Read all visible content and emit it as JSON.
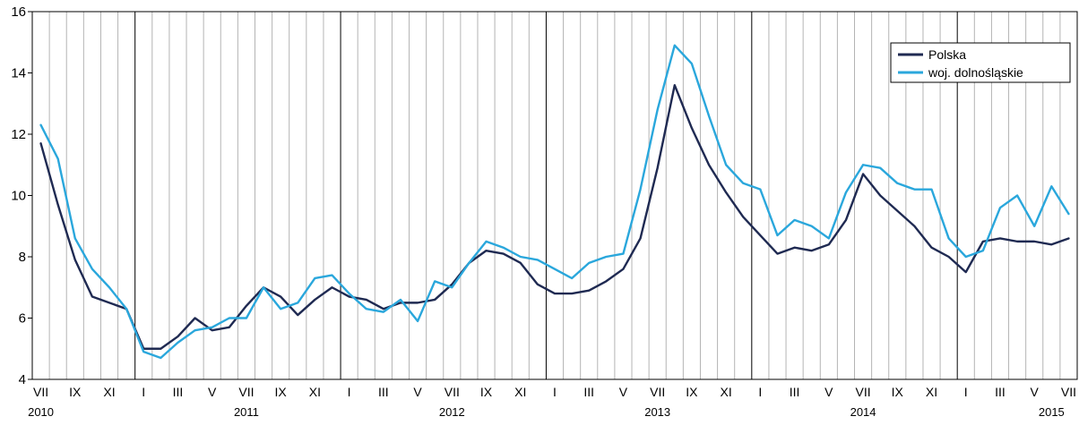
{
  "chart_data": {
    "type": "line",
    "ylim": [
      4,
      16
    ],
    "yticks": [
      4,
      6,
      8,
      10,
      12,
      14,
      16
    ],
    "grid": true,
    "legend_position": "top-right",
    "x_month_labels": [
      "VII",
      "",
      "IX",
      "",
      "XI",
      "",
      "I",
      "",
      "III",
      "",
      "V",
      "",
      "VII",
      "",
      "IX",
      "",
      "XI",
      "",
      "I",
      "",
      "III",
      "",
      "V",
      "",
      "VII",
      "",
      "IX",
      "",
      "XI",
      "",
      "I",
      "",
      "III",
      "",
      "V",
      "",
      "VII",
      "",
      "IX",
      "",
      "XI",
      "",
      "I",
      "",
      "III",
      "",
      "V",
      "",
      "VII",
      "",
      "IX",
      "",
      "XI",
      "",
      "I",
      "",
      "III",
      "",
      "V",
      "",
      "VII"
    ],
    "year_labels": [
      {
        "label": "2010",
        "month_index": 0
      },
      {
        "label": "2011",
        "month_index": 12
      },
      {
        "label": "2012",
        "month_index": 24
      },
      {
        "label": "2013",
        "month_index": 36
      },
      {
        "label": "2014",
        "month_index": 48
      },
      {
        "label": "2015",
        "month_index": 59
      }
    ],
    "year_dividers_after_index": [
      5,
      17,
      29,
      41,
      53
    ],
    "series": [
      {
        "name": "Polska",
        "color": "#1f2a52",
        "values": [
          11.7,
          9.7,
          7.9,
          6.7,
          6.5,
          6.3,
          5.0,
          5.0,
          5.4,
          6.0,
          5.6,
          5.7,
          6.4,
          7.0,
          6.7,
          6.1,
          6.6,
          7.0,
          6.7,
          6.6,
          6.3,
          6.5,
          6.5,
          6.6,
          7.1,
          7.8,
          8.2,
          8.1,
          7.8,
          7.1,
          6.8,
          6.8,
          6.9,
          7.2,
          7.6,
          8.6,
          10.9,
          13.6,
          12.2,
          11.0,
          10.1,
          9.3,
          8.7,
          8.1,
          8.3,
          8.2,
          8.4,
          9.2,
          10.7,
          10.0,
          9.5,
          9.0,
          8.3,
          8.0,
          7.5,
          8.5,
          8.6,
          8.5,
          8.5,
          8.4,
          8.6
        ]
      },
      {
        "name": "woj. dolnośląskie",
        "color": "#2aa7dc",
        "values": [
          12.3,
          11.2,
          8.6,
          7.6,
          7.0,
          6.3,
          4.9,
          4.7,
          5.2,
          5.6,
          5.7,
          6.0,
          6.0,
          7.0,
          6.3,
          6.5,
          7.3,
          7.4,
          6.8,
          6.3,
          6.2,
          6.6,
          5.9,
          7.2,
          7.0,
          7.8,
          8.5,
          8.3,
          8.0,
          7.9,
          7.6,
          7.3,
          7.8,
          8.0,
          8.1,
          10.2,
          12.8,
          14.9,
          14.3,
          12.6,
          11.0,
          10.4,
          10.2,
          8.7,
          9.2,
          9.0,
          8.6,
          10.1,
          11.0,
          10.9,
          10.4,
          10.2,
          10.2,
          8.6,
          8.0,
          8.2,
          9.6,
          10.0,
          9.0,
          10.3,
          9.4
        ]
      }
    ]
  }
}
